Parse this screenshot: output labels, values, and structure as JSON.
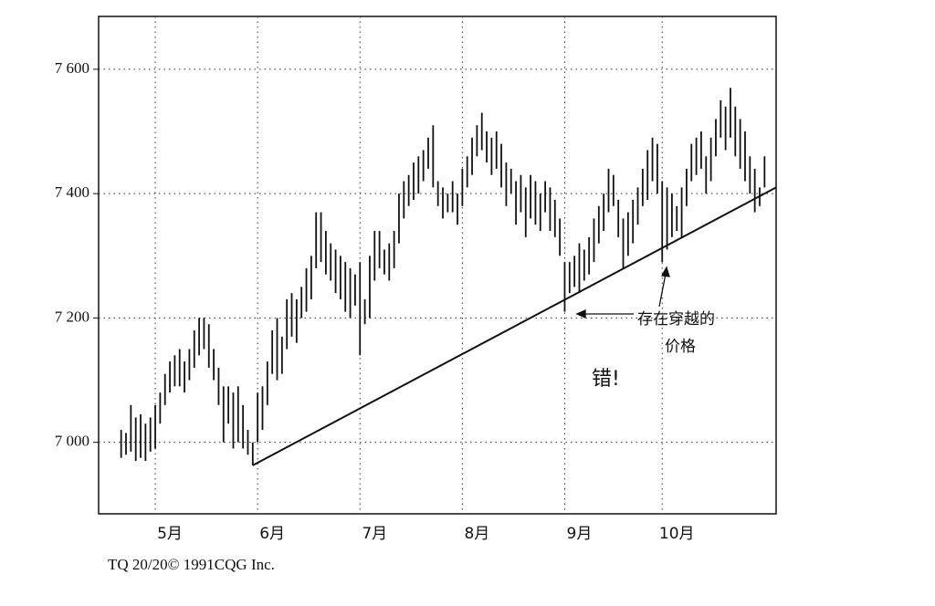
{
  "chart_data": {
    "type": "range-bar",
    "categories": [
      null,
      null,
      null,
      null,
      null,
      null,
      null,
      "5月",
      null,
      null,
      null,
      null,
      null,
      null,
      null,
      null,
      null,
      null,
      null,
      null,
      null,
      null,
      null,
      null,
      null,
      null,
      null,
      null,
      "6月",
      null,
      null,
      null,
      null,
      null,
      null,
      null,
      null,
      null,
      null,
      null,
      null,
      null,
      null,
      null,
      null,
      null,
      null,
      null,
      null,
      "7月",
      null,
      null,
      null,
      null,
      null,
      null,
      null,
      null,
      null,
      null,
      null,
      null,
      null,
      null,
      null,
      null,
      null,
      null,
      null,
      null,
      "8月",
      null,
      null,
      null,
      null,
      null,
      null,
      null,
      null,
      null,
      null,
      null,
      null,
      null,
      null,
      null,
      null,
      null,
      null,
      null,
      null,
      "9月",
      null,
      null,
      null,
      null,
      null,
      null,
      null,
      null,
      null,
      null,
      null,
      null,
      null,
      null,
      null,
      null,
      null,
      null,
      null,
      "10月",
      null,
      null,
      null,
      null,
      null,
      null,
      null,
      null,
      null,
      null,
      null,
      null,
      null,
      null,
      null,
      null,
      null,
      null,
      null,
      null,
      null
    ],
    "high": [
      7020,
      7015,
      7060,
      7040,
      7045,
      7030,
      7040,
      7060,
      7080,
      7110,
      7130,
      7140,
      7150,
      7130,
      7150,
      7180,
      7200,
      7200,
      7190,
      7150,
      7120,
      7090,
      7090,
      7080,
      7090,
      7060,
      7020,
      7000,
      7080,
      7090,
      7130,
      7180,
      7200,
      7170,
      7230,
      7240,
      7230,
      7250,
      7280,
      7300,
      7370,
      7370,
      7340,
      7320,
      7310,
      7300,
      7290,
      7280,
      7270,
      7290,
      7230,
      7300,
      7340,
      7340,
      7310,
      7320,
      7340,
      7400,
      7420,
      7430,
      7450,
      7460,
      7470,
      7490,
      7510,
      7420,
      7410,
      7400,
      7420,
      7400,
      7440,
      7460,
      7490,
      7510,
      7530,
      7500,
      7490,
      7500,
      7480,
      7450,
      7440,
      7420,
      7430,
      7410,
      7430,
      7420,
      7400,
      7420,
      7410,
      7390,
      7360,
      7290,
      7290,
      7300,
      7320,
      7310,
      7330,
      7360,
      7380,
      7400,
      7440,
      7430,
      7390,
      7360,
      7370,
      7390,
      7410,
      7440,
      7470,
      7490,
      7480,
      7420,
      7410,
      7400,
      7380,
      7410,
      7440,
      7480,
      7490,
      7500,
      7460,
      7490,
      7520,
      7550,
      7540,
      7570,
      7540,
      7520,
      7500,
      7460,
      7440,
      7410,
      7460
    ],
    "low": [
      6975,
      6980,
      6985,
      6970,
      6975,
      6970,
      6985,
      6990,
      7030,
      7060,
      7080,
      7090,
      7090,
      7080,
      7100,
      7120,
      7140,
      7150,
      7120,
      7100,
      7060,
      7000,
      7030,
      6990,
      7000,
      6990,
      6980,
      6963,
      7000,
      7020,
      7060,
      7110,
      7100,
      7110,
      7150,
      7170,
      7160,
      7200,
      7210,
      7230,
      7280,
      7290,
      7270,
      7260,
      7240,
      7230,
      7210,
      7200,
      7220,
      7140,
      7190,
      7200,
      7260,
      7280,
      7270,
      7260,
      7280,
      7320,
      7360,
      7380,
      7390,
      7400,
      7420,
      7440,
      7410,
      7380,
      7360,
      7370,
      7370,
      7350,
      7380,
      7410,
      7430,
      7460,
      7470,
      7450,
      7430,
      7440,
      7410,
      7380,
      7400,
      7350,
      7370,
      7330,
      7360,
      7350,
      7340,
      7370,
      7340,
      7330,
      7300,
      7210,
      7240,
      7250,
      7240,
      7260,
      7270,
      7290,
      7320,
      7340,
      7370,
      7380,
      7330,
      7280,
      7300,
      7320,
      7350,
      7380,
      7390,
      7420,
      7400,
      7290,
      7310,
      7330,
      7340,
      7330,
      7380,
      7420,
      7430,
      7440,
      7400,
      7420,
      7460,
      7490,
      7470,
      7490,
      7460,
      7440,
      7420,
      7400,
      7370,
      7380,
      7410
    ],
    "color": "#111111",
    "ylim": [
      6885,
      7685
    ],
    "yticks": [
      {
        "value": 7000,
        "label": "7 000"
      },
      {
        "value": 7200,
        "label": "7 200"
      },
      {
        "value": 7400,
        "label": "7 400"
      },
      {
        "value": 7600,
        "label": "7 600"
      }
    ],
    "grid": true,
    "trendline": {
      "from": 27,
      "to": 132,
      "values": [
        6963,
        7400
      ]
    },
    "annotations": [
      "存在穿越的",
      "价格",
      "错!"
    ],
    "footer": "TQ 20/20© 1991CQG Inc."
  }
}
